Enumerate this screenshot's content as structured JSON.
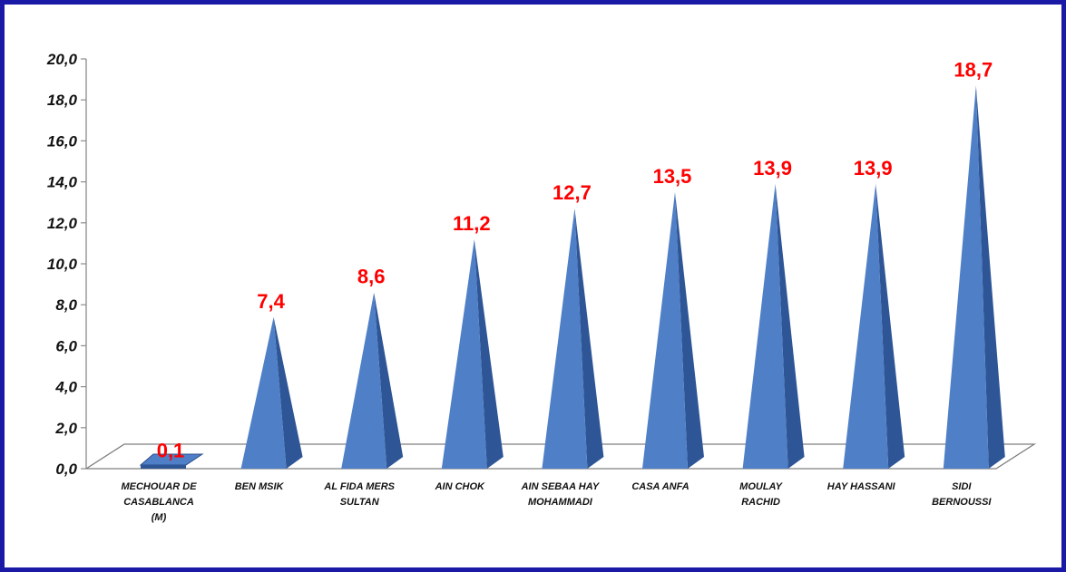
{
  "chart_data": {
    "type": "bar",
    "bar_shape": "pyramid",
    "categories": [
      "MECHOUAR DE CASABLANCA (M)",
      "BEN MSIK",
      "AL FIDA MERS SULTAN",
      "AIN CHOK",
      "AIN SEBAA HAY MOHAMMADI",
      "CASA ANFA",
      "MOULAY RACHID",
      "HAY HASSANI",
      "SIDI BERNOUSSI"
    ],
    "category_lines": [
      [
        "MECHOUAR DE",
        "CASABLANCA",
        "(M)"
      ],
      [
        "BEN MSIK"
      ],
      [
        "AL FIDA MERS",
        "SULTAN"
      ],
      [
        "AIN CHOK"
      ],
      [
        "AIN SEBAA HAY",
        "MOHAMMADI"
      ],
      [
        "CASA ANFA"
      ],
      [
        "MOULAY",
        "RACHID"
      ],
      [
        "HAY HASSANI"
      ],
      [
        "SIDI",
        "BERNOUSSI"
      ]
    ],
    "values": [
      0.1,
      7.4,
      8.6,
      11.2,
      12.7,
      13.5,
      13.9,
      13.9,
      18.7
    ],
    "data_labels": [
      "0,1",
      "7,4",
      "8,6",
      "11,2",
      "12,7",
      "13,5",
      "13,9",
      "13,9",
      "18,7"
    ],
    "y_ticks": [
      "0,0",
      "2,0",
      "4,0",
      "6,0",
      "8,0",
      "10,0",
      "12,0",
      "14,0",
      "16,0",
      "18,0",
      "20,0"
    ],
    "ylim": [
      0,
      20
    ],
    "title": "",
    "xlabel": "",
    "ylabel": "",
    "grid": false,
    "legend": "none",
    "colors": {
      "bar_front": "#4f7fc6",
      "bar_side": "#2e5596",
      "label": "#ff0000",
      "frame": "#1a1aa6",
      "floor": "#7f7f7f"
    }
  }
}
